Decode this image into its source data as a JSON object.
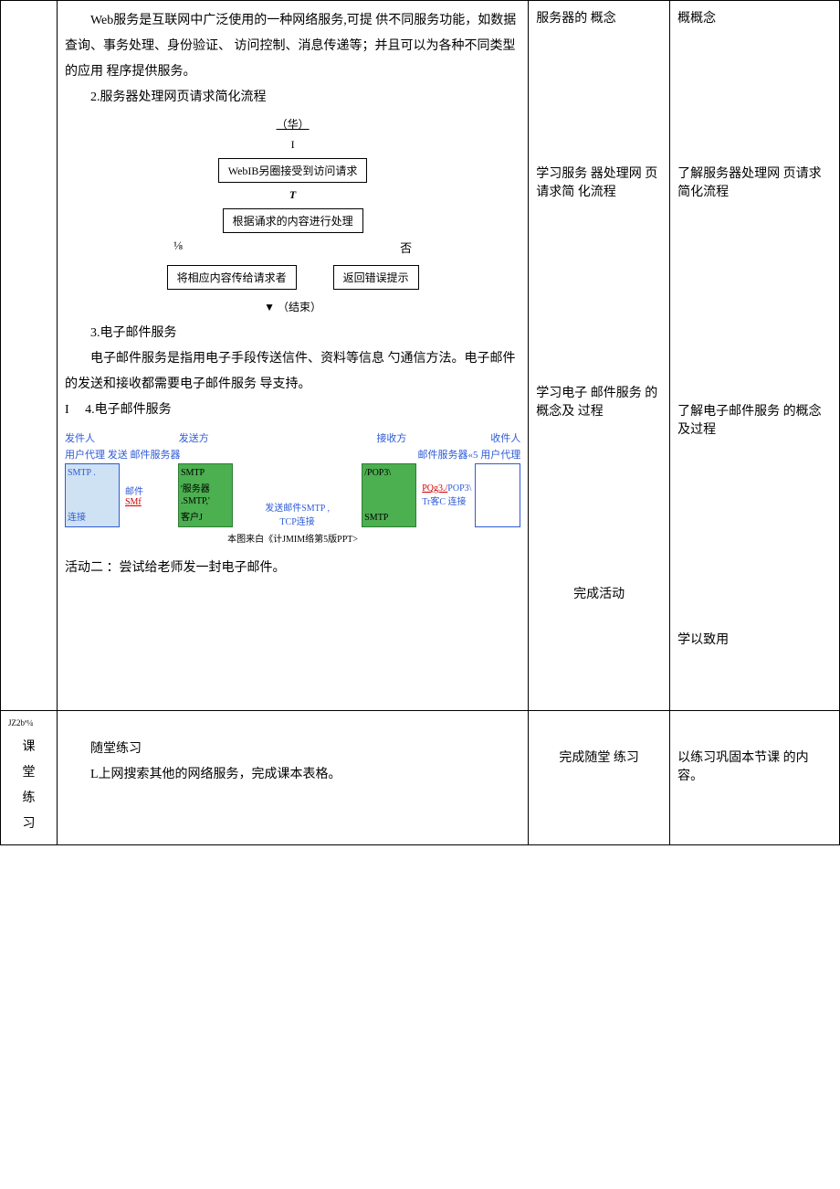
{
  "row1": {
    "col2": {
      "para1": "Web服务是互联网中广泛使用的一种网络服务,可提 供不同服务功能，如数据查询、事务处理、身份验证、 访问控制、消息传递等；并且可以为各种不同类型的应用 程序提供服务。",
      "heading2": "2.服务器处理网页请求简化流程",
      "flow": {
        "start": "（华）",
        "arrow1": "I",
        "box1": "WebIB另圈接受到访问请求",
        "arrow2": "T",
        "box2": "根据诵求的内容进行处理",
        "yes": "⅛",
        "no": "否",
        "box3": "将相应内容传给请求者",
        "box4": "返回错误提示",
        "end": "▼ （结束）"
      },
      "heading3": "3.电子邮件服务",
      "para3": "电子邮件服务是指用电子手段传送信件、资料等信息 勺通信方法。电子邮件的发送和接收都需要电子邮件服务 导支持。",
      "heading4_prefix": "I",
      "heading4": "4.电子邮件服务",
      "email": {
        "lbl_sender": "发件人",
        "lbl_send_side": "发送方",
        "lbl_recv_side": "接收方",
        "lbl_receiver": "收件人",
        "lbl_ua_send": "用户代理 发送 邮件服务器",
        "lbl_ua_recv": "邮件服务器«5 用户代理",
        "blue_smtp": "SMTP .",
        "mail": "邮件",
        "smf": "SMf",
        "conn": "连接",
        "green_smtp": "SMTP",
        "server": "'服务器",
        "smtp2": ".SMTP,'",
        "client": "客户J",
        "mid_send": "发送邮件SMTP ,",
        "mid_tcp": "TCP连接",
        "green2_pop3": "/POP3\\",
        "green2_smtp": "SMTP",
        "pqg3": "PQg3./",
        "pop3b": "POP3\\",
        "trc": "Tr客C 连接",
        "caption": "本图来白《计JMIM络第5版PPT>"
      },
      "activity": "活动二 ：尝试给老师发一封电子邮件。"
    },
    "col3": {
      "block1": "服务器的 概念",
      "block2": "学习服务 器处理网 页请求简 化流程",
      "block3": "学习电子 邮件服务 的概念及 过程",
      "block4": "完成活动"
    },
    "col4": {
      "block1": "概概念",
      "block2": "了解服务器处理网 页请求简化流程",
      "block3": "了解电子邮件服务 的概念及过程",
      "block4": "学以致用"
    }
  },
  "row2": {
    "col1_label": "JZ2bª¼",
    "col1": "课堂练习",
    "col2_h": "随堂练习",
    "col2_p": "L上网搜索其他的网络服务，完成课本表格。",
    "col3": "完成随堂 练习",
    "col4": "以练习巩固本节课 的内容。"
  }
}
